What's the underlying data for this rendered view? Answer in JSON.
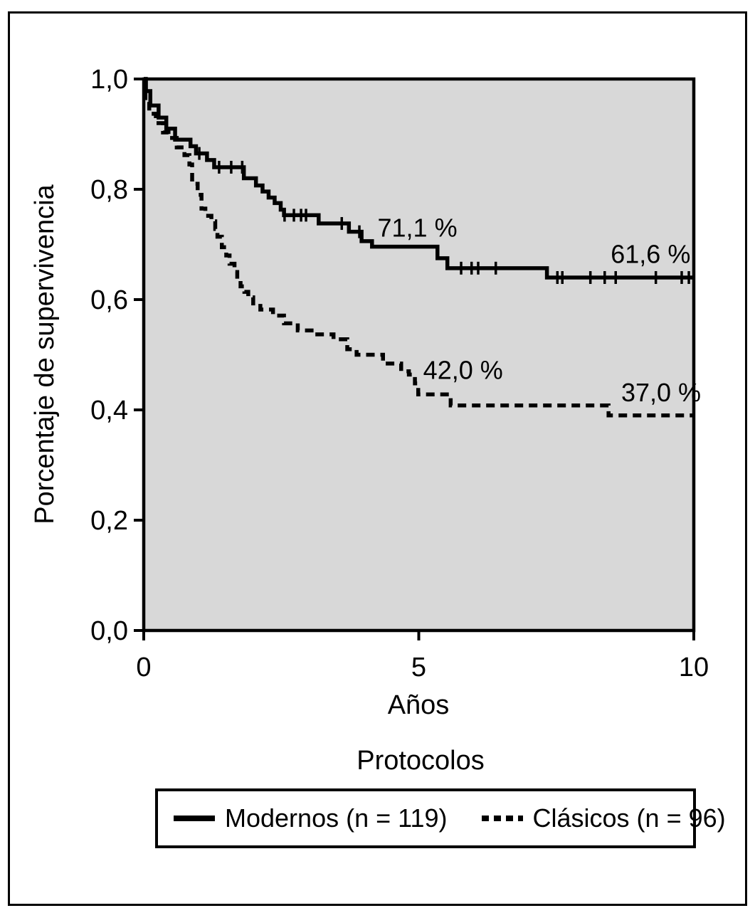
{
  "figure": {
    "y_axis_title": "Porcentaje de supervivencia",
    "x_axis_title": "Años",
    "legend_title": "Protocolos",
    "legend": [
      {
        "label": "Modernos (n = 119)",
        "style": "solid"
      },
      {
        "label": "Clásicos (n = 96)",
        "style": "dashed"
      }
    ]
  },
  "chart_data": {
    "type": "line",
    "subtype": "kaplan-meier-step",
    "title": "",
    "xlabel": "Años",
    "ylabel": "Porcentaje de supervivencia",
    "xlim": [
      0,
      10
    ],
    "ylim": [
      0.0,
      1.0
    ],
    "grid": false,
    "plot_background": "#d8d8d8",
    "line_color": "#000000",
    "x_ticks": [
      {
        "value": 0,
        "label": "0"
      },
      {
        "value": 5,
        "label": "5"
      },
      {
        "value": 10,
        "label": "10"
      }
    ],
    "y_ticks": [
      {
        "value": 0.0,
        "label": "0,0"
      },
      {
        "value": 0.2,
        "label": "0,2"
      },
      {
        "value": 0.4,
        "label": "0,4"
      },
      {
        "value": 0.6,
        "label": "0,6"
      },
      {
        "value": 0.8,
        "label": "0,8"
      },
      {
        "value": 1.0,
        "label": "1,0"
      }
    ],
    "series": [
      {
        "name": "Modernos (n = 119)",
        "style": "solid",
        "n": 119,
        "steps": [
          [
            0,
            1.0
          ],
          [
            0.04,
            0.978
          ],
          [
            0.12,
            0.952
          ],
          [
            0.27,
            0.93
          ],
          [
            0.41,
            0.91
          ],
          [
            0.57,
            0.89
          ],
          [
            0.85,
            0.878
          ],
          [
            0.95,
            0.865
          ],
          [
            1.15,
            0.853
          ],
          [
            1.28,
            0.84
          ],
          [
            1.82,
            0.82
          ],
          [
            2.04,
            0.807
          ],
          [
            2.16,
            0.796
          ],
          [
            2.27,
            0.785
          ],
          [
            2.38,
            0.775
          ],
          [
            2.49,
            0.763
          ],
          [
            2.55,
            0.753
          ],
          [
            3.18,
            0.738
          ],
          [
            3.73,
            0.723
          ],
          [
            3.96,
            0.706
          ],
          [
            4.15,
            0.696
          ],
          [
            5.34,
            0.675
          ],
          [
            5.52,
            0.657
          ],
          [
            7.33,
            0.64
          ],
          [
            10,
            0.64
          ]
        ],
        "censor_marks": [
          [
            1.01,
            0.865
          ],
          [
            1.37,
            0.84
          ],
          [
            1.59,
            0.84
          ],
          [
            1.79,
            0.84
          ],
          [
            2.56,
            0.753
          ],
          [
            2.73,
            0.753
          ],
          [
            2.86,
            0.753
          ],
          [
            2.95,
            0.753
          ],
          [
            3.6,
            0.738
          ],
          [
            3.92,
            0.723
          ],
          [
            5.77,
            0.657
          ],
          [
            5.96,
            0.657
          ],
          [
            6.08,
            0.657
          ],
          [
            6.4,
            0.657
          ],
          [
            7.52,
            0.64
          ],
          [
            7.61,
            0.64
          ],
          [
            8.12,
            0.64
          ],
          [
            8.38,
            0.64
          ],
          [
            8.58,
            0.64
          ],
          [
            9.31,
            0.64
          ],
          [
            9.78,
            0.64
          ],
          [
            9.91,
            0.64
          ]
        ]
      },
      {
        "name": "Clásicos (n = 96)",
        "style": "dashed",
        "n": 96,
        "steps": [
          [
            0,
            1.0
          ],
          [
            0.03,
            0.96
          ],
          [
            0.1,
            0.937
          ],
          [
            0.22,
            0.92
          ],
          [
            0.35,
            0.903
          ],
          [
            0.45,
            0.893
          ],
          [
            0.6,
            0.876
          ],
          [
            0.74,
            0.862
          ],
          [
            0.83,
            0.845
          ],
          [
            0.88,
            0.81
          ],
          [
            0.98,
            0.79
          ],
          [
            1.05,
            0.765
          ],
          [
            1.12,
            0.752
          ],
          [
            1.23,
            0.742
          ],
          [
            1.3,
            0.728
          ],
          [
            1.34,
            0.714
          ],
          [
            1.42,
            0.695
          ],
          [
            1.5,
            0.68
          ],
          [
            1.56,
            0.665
          ],
          [
            1.65,
            0.65
          ],
          [
            1.7,
            0.636
          ],
          [
            1.76,
            0.624
          ],
          [
            1.83,
            0.614
          ],
          [
            1.9,
            0.604
          ],
          [
            1.99,
            0.593
          ],
          [
            2.12,
            0.582
          ],
          [
            2.35,
            0.571
          ],
          [
            2.55,
            0.557
          ],
          [
            2.8,
            0.544
          ],
          [
            3.1,
            0.537
          ],
          [
            3.45,
            0.528
          ],
          [
            3.7,
            0.51
          ],
          [
            3.87,
            0.5
          ],
          [
            4.35,
            0.484
          ],
          [
            4.68,
            0.47
          ],
          [
            4.82,
            0.464
          ],
          [
            4.93,
            0.448
          ],
          [
            4.99,
            0.428
          ],
          [
            5.58,
            0.408
          ],
          [
            8.45,
            0.39
          ],
          [
            10,
            0.39
          ]
        ],
        "censor_marks": []
      }
    ],
    "annotations": [
      {
        "text": "71,1 %",
        "series": "Modernos",
        "x": 4.25,
        "y": 0.731
      },
      {
        "text": "61,6 %",
        "series": "Modernos",
        "x": 8.49,
        "y": 0.683
      },
      {
        "text": "42,0 %",
        "series": "Clásicos",
        "x": 5.08,
        "y": 0.473
      },
      {
        "text": "37,0 %",
        "series": "Clásicos",
        "x": 8.68,
        "y": 0.432
      }
    ],
    "legend_title": "Protocolos",
    "legend_position": "bottom"
  }
}
